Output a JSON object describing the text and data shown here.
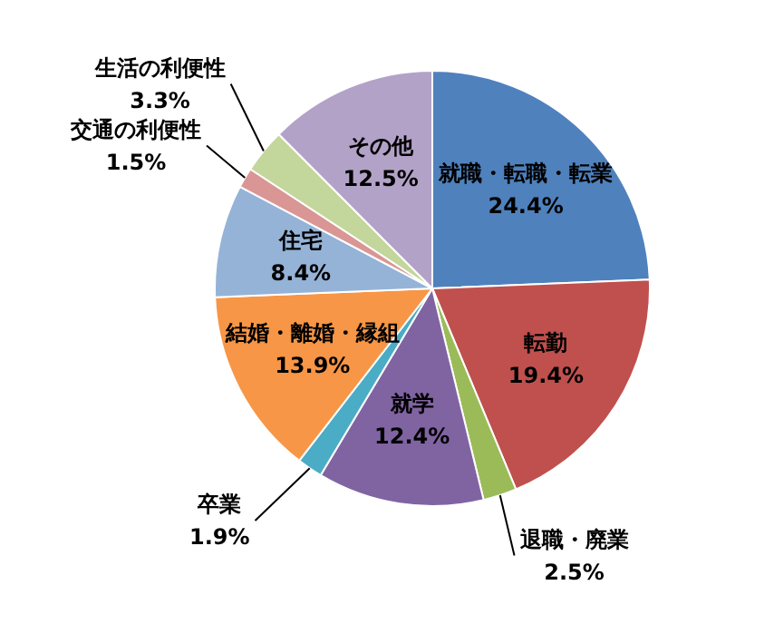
{
  "chart_data": {
    "type": "pie",
    "categories": [
      "就職・転職・転業",
      "転勤",
      "退職・廃業",
      "就学",
      "卒業",
      "結婚・離婚・縁組",
      "住宅",
      "交通の利便性",
      "生活の利便性",
      "その他"
    ],
    "values": [
      24.4,
      19.4,
      2.5,
      12.4,
      1.9,
      13.9,
      8.4,
      1.5,
      3.3,
      12.5
    ],
    "value_labels": [
      "24.4%",
      "19.4%",
      "2.5%",
      "12.4%",
      "1.9%",
      "13.9%",
      "8.4%",
      "1.5%",
      "3.3%",
      "12.5%"
    ],
    "colors": [
      "#4f81bd",
      "#c0504d",
      "#9bbb59",
      "#8064a2",
      "#4bacc6",
      "#f79646",
      "#95b3d7",
      "#d99694",
      "#c3d69b",
      "#b3a2c7"
    ],
    "legend": false
  }
}
